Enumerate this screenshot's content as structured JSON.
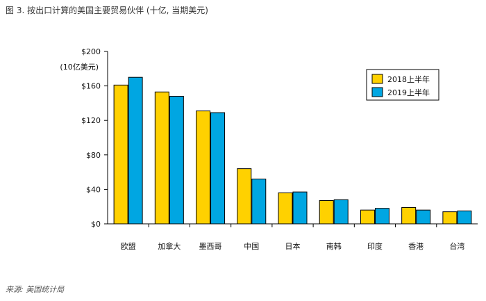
{
  "figure": {
    "title": "图 3. 按出口计算的美国主要贸易伙伴 (十亿, 当期美元)",
    "source": "来源: 美国统计局"
  },
  "chart_data": {
    "type": "bar",
    "unit_label": "(10亿美元)",
    "categories": [
      "欧盟",
      "加拿大",
      "墨西哥",
      "中国",
      "日本",
      "南韩",
      "印度",
      "香港",
      "台湾"
    ],
    "series": [
      {
        "name": "2018上半年",
        "color": "#FFD100",
        "values": [
          161,
          153,
          131,
          64,
          36,
          27,
          16,
          19,
          14
        ]
      },
      {
        "name": "2019上半年",
        "color": "#00A6E2",
        "values": [
          170,
          148,
          129,
          52,
          37,
          28,
          18,
          16,
          15
        ]
      }
    ],
    "ylim": [
      0,
      200
    ],
    "yticks": [
      0,
      40,
      80,
      120,
      160,
      200
    ],
    "ytick_labels": [
      "$0",
      "$40",
      "$80",
      "$120",
      "$160",
      "$200"
    ],
    "legend_position": "top-right",
    "grid": false
  }
}
